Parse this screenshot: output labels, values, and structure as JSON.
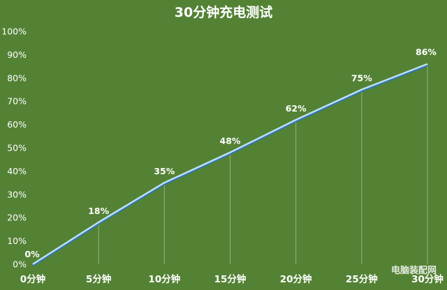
{
  "chart_data": {
    "type": "line",
    "title": "30分钟充电测试",
    "xlabel": "",
    "ylabel": "",
    "categories": [
      "0分钟",
      "5分钟",
      "10分钟",
      "15分钟",
      "20分钟",
      "25分钟",
      "30分钟"
    ],
    "values": [
      0,
      18,
      35,
      48,
      62,
      75,
      86
    ],
    "data_labels": [
      "0%",
      "18%",
      "35%",
      "48%",
      "62%",
      "75%",
      "86%"
    ],
    "y_ticks": [
      "0%",
      "10%",
      "20%",
      "30%",
      "40%",
      "50%",
      "60%",
      "70%",
      "80%",
      "90%",
      "100%"
    ],
    "ylim": [
      0,
      100
    ],
    "grid": false,
    "legend": "none",
    "colors": {
      "background": "#548235",
      "line": "#bfe0f2",
      "line_shadow": "#2e75b6",
      "text": "#ffffff"
    }
  },
  "watermark": "电脑装配网"
}
